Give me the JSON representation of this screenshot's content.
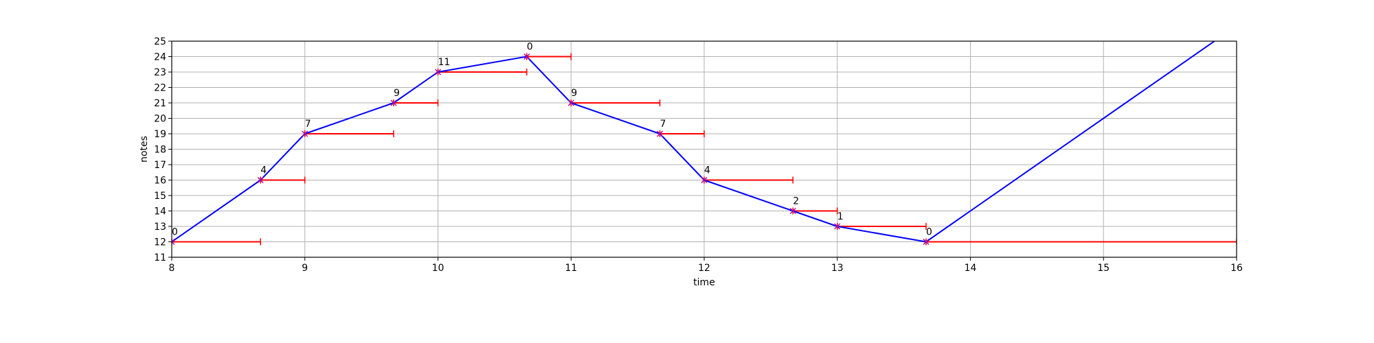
{
  "chart_data": {
    "type": "line",
    "title": "",
    "xlabel": "time",
    "ylabel": "notes",
    "xlim": [
      8,
      16
    ],
    "ylim": [
      11,
      25
    ],
    "xticks": [
      8,
      9,
      10,
      11,
      12,
      13,
      14,
      15,
      16
    ],
    "yticks": [
      11,
      12,
      13,
      14,
      15,
      16,
      17,
      18,
      19,
      20,
      21,
      22,
      23,
      24,
      25
    ],
    "grid": true,
    "colors": {
      "line": "#0000ff",
      "segment": "#ff0000",
      "marker": "#aa00aa",
      "grid": "#b0b0b0"
    },
    "series": [
      {
        "x": [
          8,
          8.667,
          9,
          9.667,
          10,
          10.667,
          11,
          11.667,
          12,
          12.667,
          13,
          13.667,
          16
        ],
        "y": [
          12,
          16,
          19,
          21,
          23,
          24,
          21,
          19,
          16,
          14,
          13,
          12,
          26
        ]
      }
    ],
    "segments": [
      {
        "x0": 8,
        "x1": 8.667,
        "y": 12
      },
      {
        "x0": 8.667,
        "x1": 9,
        "y": 16
      },
      {
        "x0": 9,
        "x1": 9.667,
        "y": 19
      },
      {
        "x0": 9.667,
        "x1": 10,
        "y": 21
      },
      {
        "x0": 10,
        "x1": 10.667,
        "y": 23
      },
      {
        "x0": 10.667,
        "x1": 11,
        "y": 24
      },
      {
        "x0": 11,
        "x1": 11.667,
        "y": 21
      },
      {
        "x0": 11.667,
        "x1": 12,
        "y": 19
      },
      {
        "x0": 12,
        "x1": 12.667,
        "y": 16
      },
      {
        "x0": 12.667,
        "x1": 13,
        "y": 14
      },
      {
        "x0": 13,
        "x1": 13.667,
        "y": 13
      },
      {
        "x0": 13.667,
        "x1": 16,
        "y": 12
      }
    ],
    "annotations": [
      {
        "x": 8,
        "y": 12,
        "text": "0"
      },
      {
        "x": 8.667,
        "y": 16,
        "text": "4"
      },
      {
        "x": 9,
        "y": 19,
        "text": "7"
      },
      {
        "x": 9.667,
        "y": 21,
        "text": "9"
      },
      {
        "x": 10,
        "y": 23,
        "text": "11"
      },
      {
        "x": 10.667,
        "y": 24,
        "text": "0"
      },
      {
        "x": 11,
        "y": 21,
        "text": "9"
      },
      {
        "x": 11.667,
        "y": 19,
        "text": "7"
      },
      {
        "x": 12,
        "y": 16,
        "text": "4"
      },
      {
        "x": 12.667,
        "y": 14,
        "text": "2"
      },
      {
        "x": 13,
        "y": 13,
        "text": "1"
      },
      {
        "x": 13.667,
        "y": 12,
        "text": "0"
      }
    ]
  }
}
